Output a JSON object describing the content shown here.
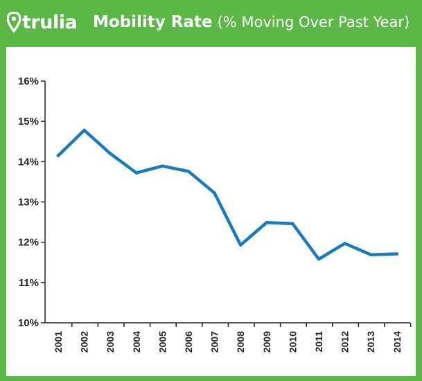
{
  "brand": {
    "logo_text": "trulia",
    "logo_icon": "map-pin-icon"
  },
  "header": {
    "title_bold": "Mobility Rate",
    "title_sub": "(% Moving Over Past Year)"
  },
  "colors": {
    "background": "#5cb846",
    "line": "#1a7abf",
    "axis": "#222222"
  },
  "chart_data": {
    "type": "line",
    "title": "Mobility Rate (% Moving Over Past Year)",
    "xlabel": "",
    "ylabel": "",
    "categories": [
      "2001",
      "2002",
      "2003",
      "2004",
      "2005",
      "2006",
      "2007",
      "2008",
      "2009",
      "2010",
      "2011",
      "2012",
      "2013",
      "2014"
    ],
    "series": [
      {
        "values": [
          14.15,
          14.78,
          14.2,
          13.72,
          13.89,
          13.76,
          13.22,
          11.93,
          12.49,
          12.46,
          11.58,
          11.97,
          11.69,
          11.71
        ]
      }
    ],
    "ylim": [
      10,
      16
    ],
    "yticks": [
      10,
      11,
      12,
      13,
      14,
      15,
      16
    ],
    "ytick_labels": [
      "10%",
      "11%",
      "12%",
      "13%",
      "14%",
      "15%",
      "16%"
    ],
    "grid": false,
    "legend": "none"
  }
}
